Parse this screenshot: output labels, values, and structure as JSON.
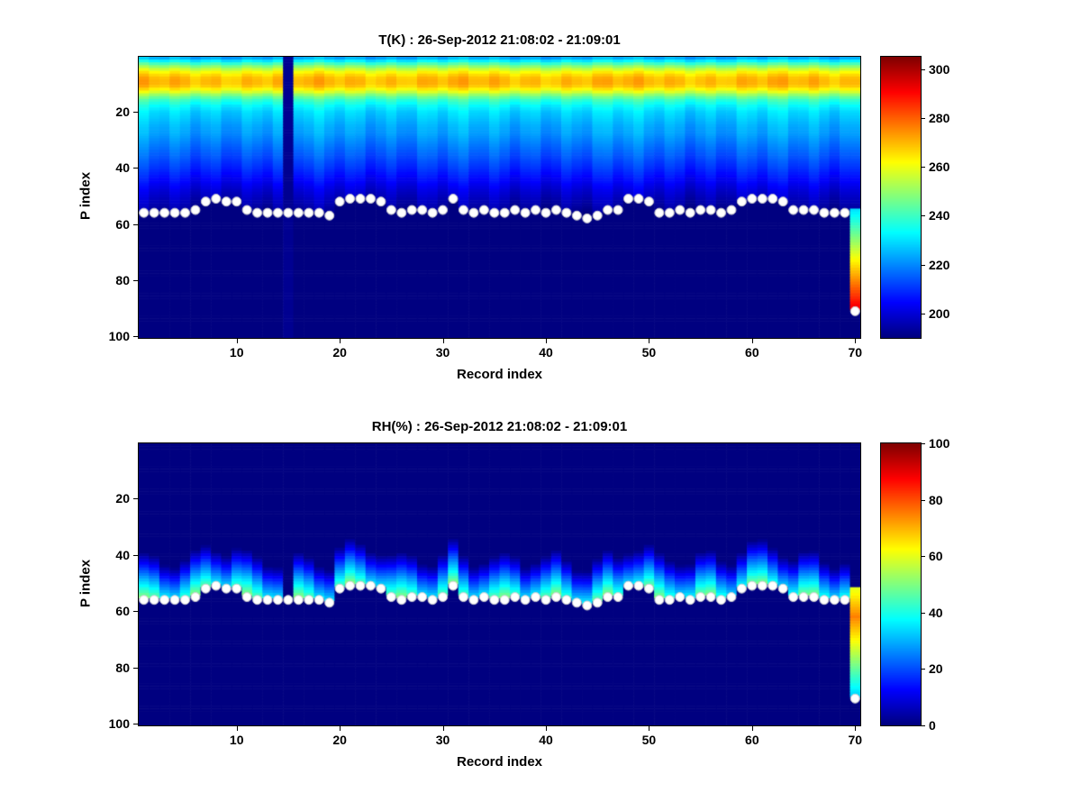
{
  "figure": {
    "background": "#ffffff",
    "text_color": "#000000"
  },
  "surface_markers": {
    "shape": "circle",
    "color": "#ffffff",
    "p_index_by_record": [
      56,
      56,
      56,
      56,
      56,
      55,
      52,
      51,
      52,
      52,
      55,
      56,
      56,
      56,
      56,
      56,
      56,
      56,
      57,
      52,
      51,
      51,
      51,
      52,
      55,
      56,
      55,
      55,
      56,
      55,
      51,
      55,
      56,
      55,
      56,
      56,
      55,
      56,
      55,
      56,
      55,
      56,
      57,
      58,
      57,
      55,
      55,
      51,
      51,
      52,
      56,
      56,
      55,
      56,
      55,
      55,
      56,
      55,
      52,
      51,
      51,
      51,
      52,
      55,
      55,
      55,
      56,
      56,
      56,
      91
    ]
  },
  "chart_data": [
    {
      "type": "heatmap",
      "title": "T(K) : 26-Sep-2012 21:08:02 - 21:09:01",
      "xlabel": "Record index",
      "ylabel": "P index",
      "colormap": "jet",
      "x_range": [
        1,
        70
      ],
      "y_range": [
        1,
        100
      ],
      "y_axis_reversed": true,
      "x_ticks": [
        10,
        20,
        30,
        40,
        50,
        60,
        70
      ],
      "y_ticks": [
        20,
        40,
        60,
        80,
        100
      ],
      "value_range": [
        190,
        305
      ],
      "colorbar_ticks": [
        200,
        220,
        240,
        260,
        280,
        300
      ],
      "background_value": 190,
      "missing_record": 15,
      "missing_value": 192,
      "profile": {
        "p": [
          1,
          2,
          3,
          4,
          5,
          6,
          7,
          8,
          9,
          10,
          11,
          12,
          13,
          14,
          15,
          16,
          18,
          20,
          22,
          25,
          28,
          30,
          33,
          36,
          40,
          44,
          48,
          52,
          56,
          60
        ],
        "v": [
          224,
          232,
          241,
          249,
          256,
          262,
          266,
          269,
          270,
          270,
          268,
          263,
          257,
          250,
          244,
          239,
          233,
          229,
          227,
          224,
          222,
          220,
          217,
          214,
          210,
          205,
          200,
          196,
          192,
          190
        ]
      },
      "special_column": {
        "record": 70,
        "p_start": 55,
        "p_end": 90,
        "v_start": 230,
        "v_slope": 1.8,
        "v_max": 292
      }
    },
    {
      "type": "heatmap",
      "title": "RH(%) : 26-Sep-2012 21:08:02 - 21:09:01",
      "xlabel": "Record index",
      "ylabel": "P index",
      "colormap": "jet",
      "x_range": [
        1,
        70
      ],
      "y_range": [
        1,
        100
      ],
      "y_axis_reversed": true,
      "x_ticks": [
        10,
        20,
        30,
        40,
        50,
        60,
        70
      ],
      "y_ticks": [
        20,
        40,
        60,
        80,
        100
      ],
      "value_range": [
        0,
        100
      ],
      "colorbar_ticks": [
        0,
        20,
        40,
        60,
        80,
        100
      ],
      "background_value": 0,
      "missing_record": 15,
      "missing_value": 0,
      "band": {
        "surface_value": 45,
        "decay_per_p": 3.2,
        "max_value": 70,
        "record_variation": 9
      },
      "special_column": {
        "record": 70,
        "p_start": 52,
        "p_end": 90,
        "peak_p": 62,
        "peak_value": 75,
        "falloff": 1.5,
        "min_value": 25
      }
    }
  ]
}
